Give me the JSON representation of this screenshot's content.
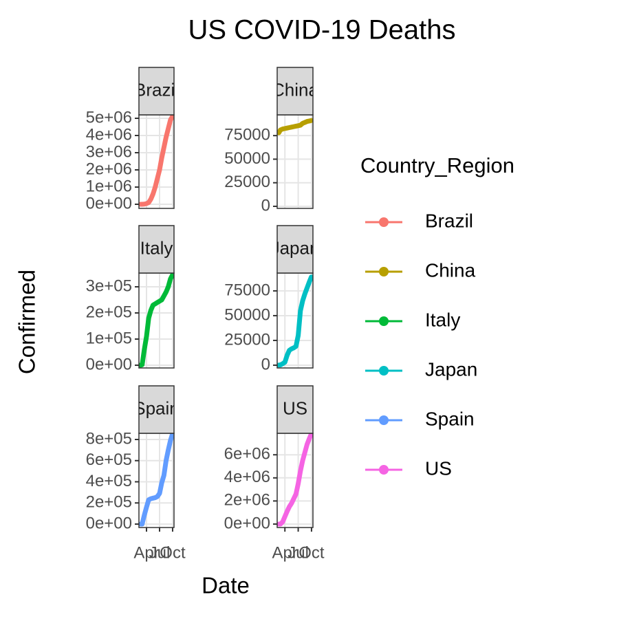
{
  "chart_data": {
    "type": "line",
    "title": "US COVID-19 Deaths",
    "x_label": "Date",
    "y_label": "Confirmed",
    "legend_title": "Country_Region",
    "x": [
      2.63,
      3,
      3.5,
      4,
      4.5,
      5,
      5.5,
      6,
      6.5,
      7,
      7.5,
      8,
      8.5,
      9,
      9.5,
      9.95
    ],
    "xlim": [
      2.26,
      10.32
    ],
    "xticks": [
      {
        "value": 4,
        "label": "Apr"
      },
      {
        "value": 7,
        "label": "Jul"
      },
      {
        "value": 10,
        "label": "Oct"
      }
    ],
    "grid": true,
    "series": [
      {
        "name": "Brazil",
        "color": "#F8766D",
        "values": [
          0,
          2000,
          10000,
          40000,
          100000,
          300000,
          600000,
          1000000,
          1500000,
          2000000,
          2700000,
          3300000,
          3900000,
          4400000,
          4900000,
          5100000
        ],
        "ylim": [
          -240000,
          5200000
        ],
        "yticks": [
          {
            "value": 0,
            "label": "0e+00"
          },
          {
            "value": 1000000,
            "label": "1e+06"
          },
          {
            "value": 2000000,
            "label": "2e+06"
          },
          {
            "value": 3000000,
            "label": "3e+06"
          },
          {
            "value": 4000000,
            "label": "4e+06"
          },
          {
            "value": 5000000,
            "label": "5e+06"
          }
        ]
      },
      {
        "name": "China",
        "color": "#B79F00",
        "values": [
          78000,
          81000,
          82000,
          82500,
          83000,
          83500,
          84000,
          84500,
          85000,
          85500,
          86000,
          88000,
          89000,
          90000,
          90500,
          91000
        ],
        "ylim": [
          -2200,
          97000
        ],
        "yticks": [
          0,
          25000,
          50000,
          75000
        ]
      },
      {
        "name": "Italy",
        "color": "#00BA38",
        "values": [
          3,
          2000,
          60000,
          110000,
          180000,
          210000,
          230000,
          235000,
          240000,
          245000,
          250000,
          265000,
          280000,
          300000,
          330000,
          345000
        ],
        "ylim": [
          -10500,
          352600
        ],
        "yticks": [
          {
            "value": 0,
            "label": "0e+00"
          },
          {
            "value": 100000,
            "label": "1e+05"
          },
          {
            "value": 200000,
            "label": "2e+05"
          },
          {
            "value": 300000,
            "label": "3e+05"
          }
        ]
      },
      {
        "name": "Japan",
        "color": "#00BFC4",
        "values": [
          90,
          300,
          1500,
          3000,
          10000,
          15000,
          16500,
          17500,
          19000,
          30000,
          55000,
          65000,
          72000,
          78000,
          84000,
          89000
        ],
        "ylim": [
          -2800,
          93000
        ],
        "yticks": [
          0,
          25000,
          50000,
          75000
        ]
      },
      {
        "name": "Spain",
        "color": "#619CFF",
        "values": [
          0,
          200,
          85000,
          160000,
          230000,
          240000,
          245000,
          250000,
          260000,
          290000,
          390000,
          460000,
          600000,
          700000,
          790000,
          850000
        ],
        "ylim": [
          -32500,
          858500
        ],
        "yticks": [
          {
            "value": 0,
            "label": "0e+00"
          },
          {
            "value": 200000,
            "label": "2e+05"
          },
          {
            "value": 400000,
            "label": "4e+05"
          },
          {
            "value": 600000,
            "label": "6e+05"
          },
          {
            "value": 800000,
            "label": "8e+05"
          }
        ]
      },
      {
        "name": "US",
        "color": "#F564E3",
        "values": [
          15,
          100,
          190000,
          650000,
          1100000,
          1500000,
          1800000,
          2200000,
          2600000,
          3500000,
          4600000,
          5500000,
          6200000,
          6900000,
          7400000,
          7800000
        ],
        "ylim": [
          -300000,
          7860000
        ],
        "yticks": [
          {
            "value": 0,
            "label": "0e+00"
          },
          {
            "value": 2000000,
            "label": "2e+06"
          },
          {
            "value": 4000000,
            "label": "4e+06"
          },
          {
            "value": 6000000,
            "label": "6e+06"
          }
        ]
      }
    ]
  }
}
